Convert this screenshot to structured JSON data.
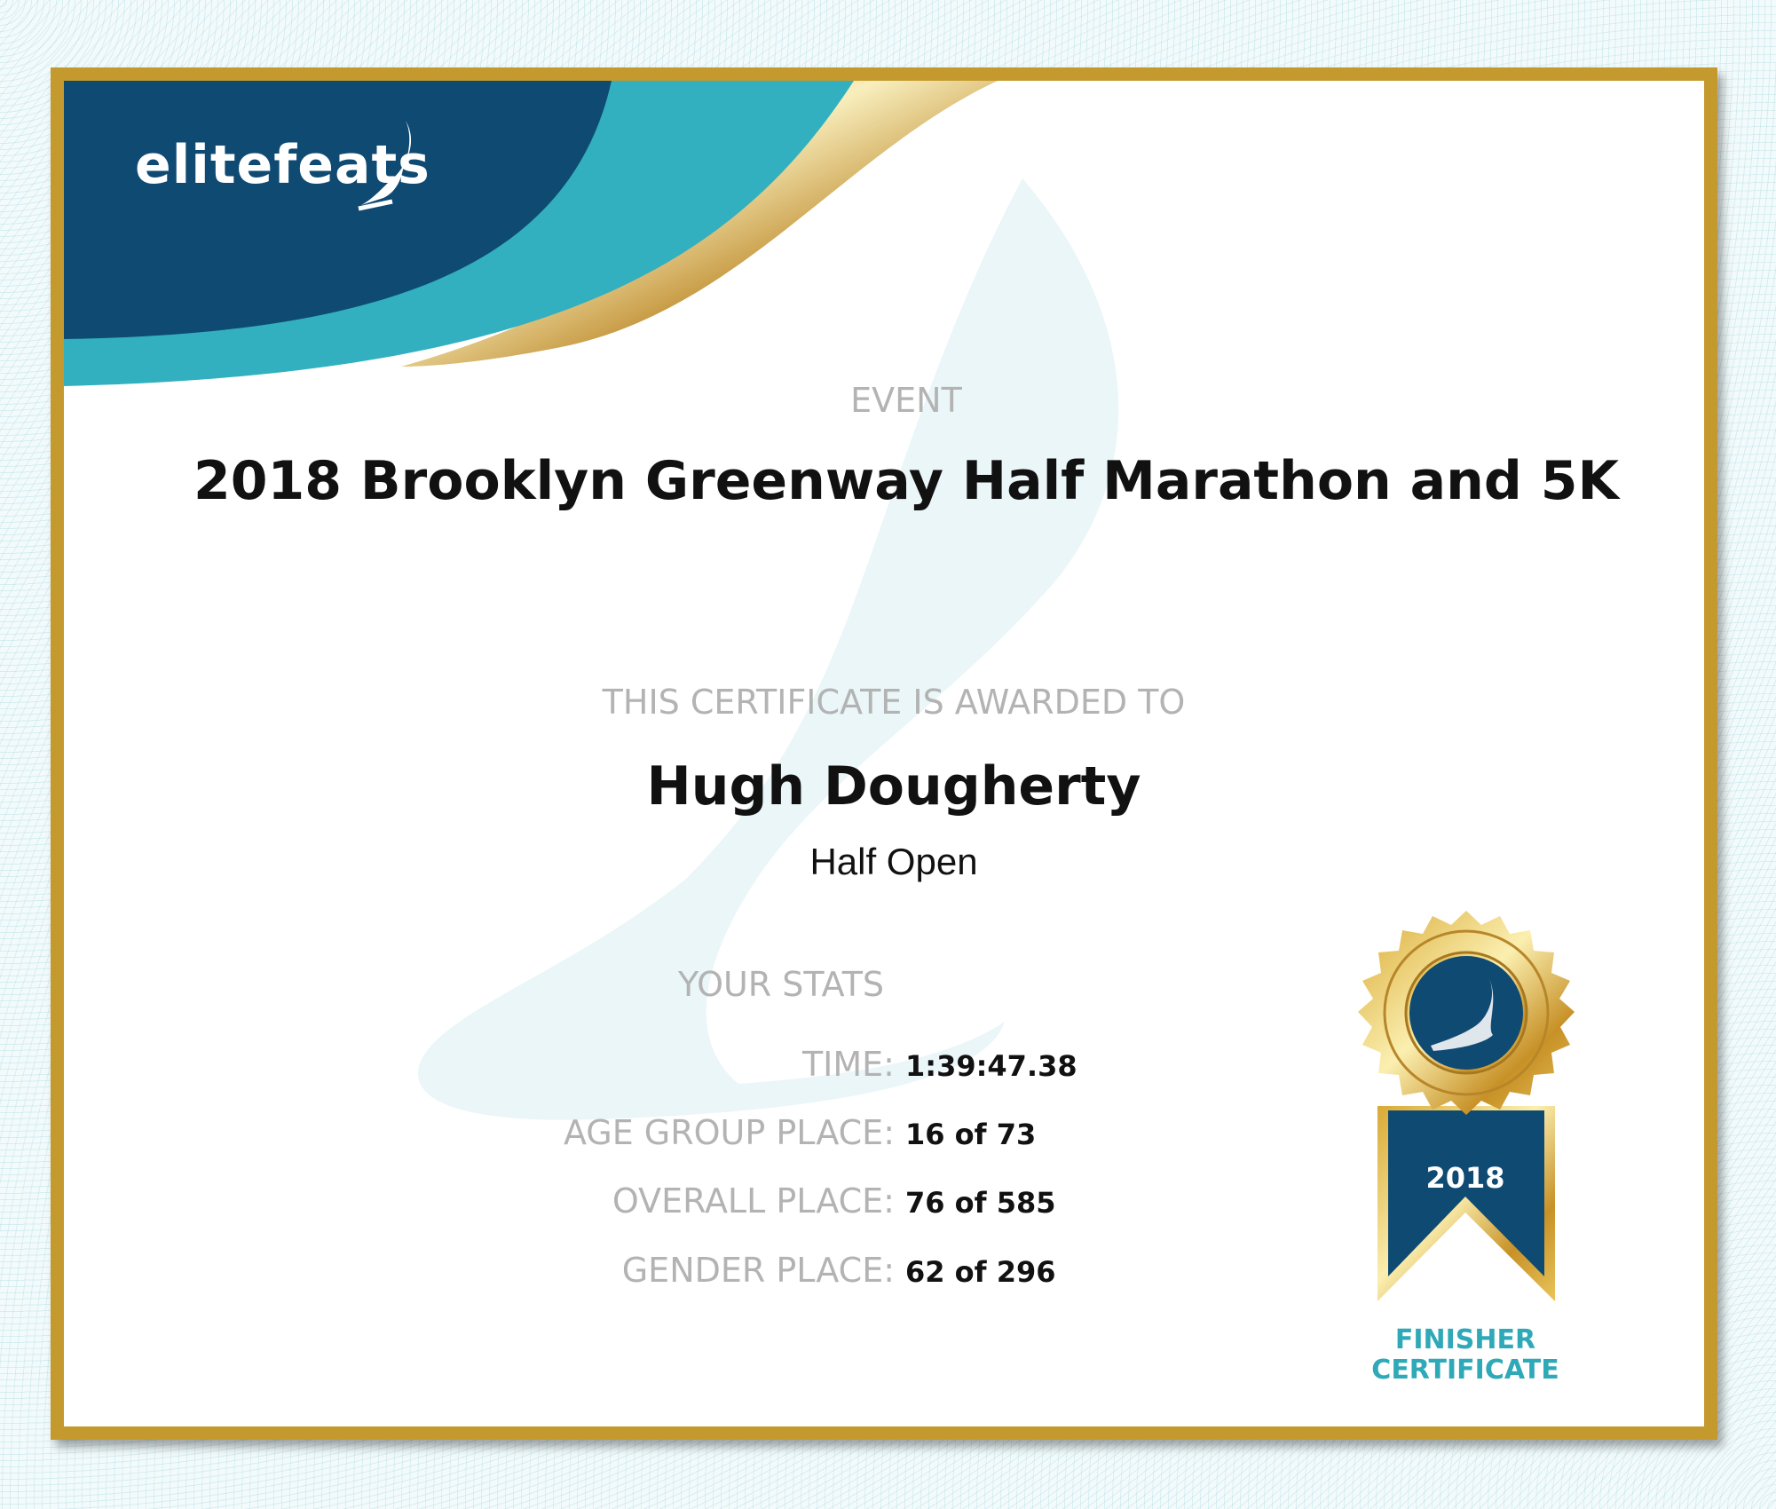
{
  "brand": {
    "logo_text": "elitefeats"
  },
  "event": {
    "label": "EVENT",
    "title": "2018 Brooklyn Greenway Half Marathon and 5K"
  },
  "award": {
    "label": "THIS CERTIFICATE IS AWARDED TO",
    "name": "Hugh Dougherty",
    "division": "Half Open"
  },
  "stats": {
    "label": "YOUR STATS",
    "rows": [
      {
        "label": "TIME:",
        "value": "1:39:47.38"
      },
      {
        "label": "AGE GROUP PLACE:",
        "value": "16 of 73"
      },
      {
        "label": "OVERALL PLACE:",
        "value": "76 of 585"
      },
      {
        "label": "GENDER PLACE:",
        "value": "62 of 296"
      }
    ]
  },
  "medal": {
    "year": "2018",
    "line1": "FINISHER",
    "line2": "CERTIFICATE",
    "icon": "winged-foot-icon"
  },
  "colors": {
    "navy": "#0f4a73",
    "teal": "#32b0bf",
    "gold": "#c49a2e",
    "label_gray": "#b3b3b3"
  }
}
